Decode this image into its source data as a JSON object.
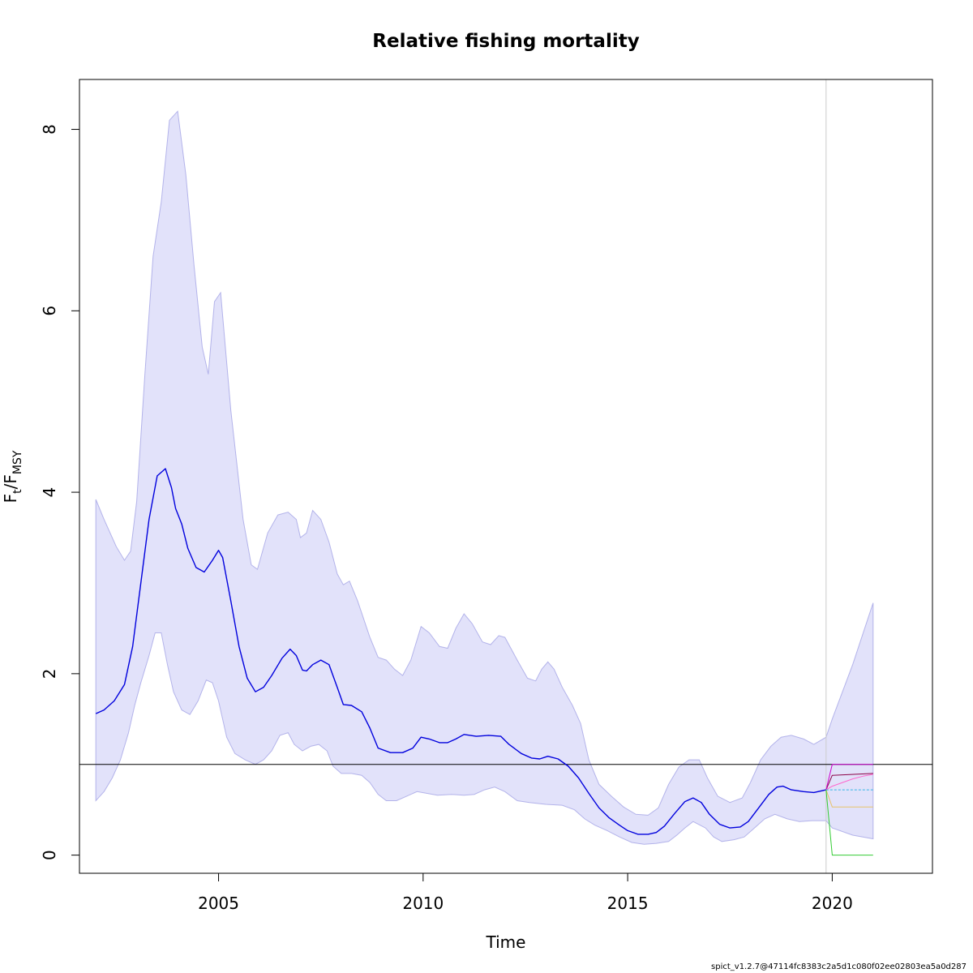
{
  "chart_data": {
    "type": "line",
    "title": "Relative fishing mortality",
    "xlabel": "Time",
    "ylabel": {
      "main": "F",
      "sub1": "t",
      "slash": "/F",
      "sub2": "MSY"
    },
    "xlim": [
      2001.6,
      2022.45
    ],
    "ylim": [
      -0.2,
      8.55
    ],
    "xticks": [
      2005,
      2010,
      2015,
      2020
    ],
    "yticks": [
      0,
      2,
      4,
      6,
      8
    ],
    "reference_line": {
      "y": 1,
      "color": "#000000"
    },
    "vertical_line": {
      "x": 2019.85,
      "color": "#cccccc"
    },
    "band": {
      "name": "95% CI",
      "fill": "#e2e2fa",
      "stroke": "#b3b3ea",
      "upper": [
        [
          2002.0,
          3.92
        ],
        [
          2002.2,
          3.7
        ],
        [
          2002.5,
          3.4
        ],
        [
          2002.7,
          3.25
        ],
        [
          2002.85,
          3.35
        ],
        [
          2003.0,
          3.9
        ],
        [
          2003.2,
          5.3
        ],
        [
          2003.4,
          6.6
        ],
        [
          2003.6,
          7.2
        ],
        [
          2003.8,
          8.1
        ],
        [
          2004.0,
          8.2
        ],
        [
          2004.2,
          7.5
        ],
        [
          2004.4,
          6.5
        ],
        [
          2004.6,
          5.6
        ],
        [
          2004.75,
          5.3
        ],
        [
          2004.9,
          6.1
        ],
        [
          2005.05,
          6.2
        ],
        [
          2005.3,
          4.9
        ],
        [
          2005.6,
          3.7
        ],
        [
          2005.8,
          3.2
        ],
        [
          2005.95,
          3.15
        ],
        [
          2006.2,
          3.55
        ],
        [
          2006.45,
          3.75
        ],
        [
          2006.7,
          3.78
        ],
        [
          2006.9,
          3.7
        ],
        [
          2007.0,
          3.5
        ],
        [
          2007.15,
          3.55
        ],
        [
          2007.3,
          3.8
        ],
        [
          2007.5,
          3.7
        ],
        [
          2007.7,
          3.45
        ],
        [
          2007.9,
          3.1
        ],
        [
          2008.05,
          2.98
        ],
        [
          2008.2,
          3.02
        ],
        [
          2008.4,
          2.8
        ],
        [
          2008.7,
          2.4
        ],
        [
          2008.9,
          2.18
        ],
        [
          2009.1,
          2.15
        ],
        [
          2009.3,
          2.05
        ],
        [
          2009.5,
          1.98
        ],
        [
          2009.7,
          2.15
        ],
        [
          2009.95,
          2.52
        ],
        [
          2010.15,
          2.45
        ],
        [
          2010.4,
          2.3
        ],
        [
          2010.6,
          2.28
        ],
        [
          2010.8,
          2.5
        ],
        [
          2011.0,
          2.66
        ],
        [
          2011.2,
          2.55
        ],
        [
          2011.45,
          2.35
        ],
        [
          2011.65,
          2.32
        ],
        [
          2011.85,
          2.42
        ],
        [
          2012.0,
          2.4
        ],
        [
          2012.3,
          2.15
        ],
        [
          2012.55,
          1.95
        ],
        [
          2012.75,
          1.92
        ],
        [
          2012.9,
          2.05
        ],
        [
          2013.05,
          2.13
        ],
        [
          2013.2,
          2.05
        ],
        [
          2013.4,
          1.85
        ],
        [
          2013.65,
          1.65
        ],
        [
          2013.85,
          1.45
        ],
        [
          2014.05,
          1.05
        ],
        [
          2014.3,
          0.78
        ],
        [
          2014.6,
          0.65
        ],
        [
          2014.9,
          0.53
        ],
        [
          2015.2,
          0.45
        ],
        [
          2015.5,
          0.44
        ],
        [
          2015.75,
          0.52
        ],
        [
          2016.0,
          0.78
        ],
        [
          2016.25,
          0.97
        ],
        [
          2016.5,
          1.05
        ],
        [
          2016.75,
          1.05
        ],
        [
          2016.95,
          0.85
        ],
        [
          2017.2,
          0.65
        ],
        [
          2017.5,
          0.58
        ],
        [
          2017.8,
          0.63
        ],
        [
          2018.0,
          0.8
        ],
        [
          2018.25,
          1.05
        ],
        [
          2018.5,
          1.2
        ],
        [
          2018.75,
          1.3
        ],
        [
          2019.0,
          1.32
        ],
        [
          2019.3,
          1.28
        ],
        [
          2019.55,
          1.22
        ],
        [
          2019.85,
          1.3
        ],
        [
          2020.0,
          1.5
        ],
        [
          2020.5,
          2.1
        ],
        [
          2021.0,
          2.78
        ]
      ],
      "lower": [
        [
          2021.0,
          0.18
        ],
        [
          2020.5,
          0.22
        ],
        [
          2020.0,
          0.3
        ],
        [
          2019.85,
          0.38
        ],
        [
          2019.5,
          0.38
        ],
        [
          2019.2,
          0.37
        ],
        [
          2018.9,
          0.4
        ],
        [
          2018.6,
          0.45
        ],
        [
          2018.35,
          0.4
        ],
        [
          2018.1,
          0.3
        ],
        [
          2017.85,
          0.2
        ],
        [
          2017.6,
          0.17
        ],
        [
          2017.3,
          0.15
        ],
        [
          2017.1,
          0.2
        ],
        [
          2016.9,
          0.3
        ],
        [
          2016.6,
          0.37
        ],
        [
          2016.4,
          0.3
        ],
        [
          2016.2,
          0.22
        ],
        [
          2016.0,
          0.15
        ],
        [
          2015.7,
          0.13
        ],
        [
          2015.4,
          0.12
        ],
        [
          2015.1,
          0.14
        ],
        [
          2014.8,
          0.2
        ],
        [
          2014.5,
          0.27
        ],
        [
          2014.2,
          0.33
        ],
        [
          2013.95,
          0.4
        ],
        [
          2013.7,
          0.5
        ],
        [
          2013.4,
          0.55
        ],
        [
          2013.0,
          0.56
        ],
        [
          2012.6,
          0.58
        ],
        [
          2012.3,
          0.6
        ],
        [
          2012.0,
          0.7
        ],
        [
          2011.75,
          0.75
        ],
        [
          2011.5,
          0.72
        ],
        [
          2011.25,
          0.67
        ],
        [
          2011.0,
          0.66
        ],
        [
          2010.7,
          0.67
        ],
        [
          2010.35,
          0.66
        ],
        [
          2010.1,
          0.68
        ],
        [
          2009.85,
          0.7
        ],
        [
          2009.6,
          0.65
        ],
        [
          2009.35,
          0.6
        ],
        [
          2009.1,
          0.6
        ],
        [
          2008.9,
          0.67
        ],
        [
          2008.7,
          0.8
        ],
        [
          2008.5,
          0.88
        ],
        [
          2008.25,
          0.9
        ],
        [
          2008.0,
          0.9
        ],
        [
          2007.8,
          0.98
        ],
        [
          2007.65,
          1.15
        ],
        [
          2007.45,
          1.22
        ],
        [
          2007.25,
          1.2
        ],
        [
          2007.05,
          1.15
        ],
        [
          2006.85,
          1.22
        ],
        [
          2006.7,
          1.35
        ],
        [
          2006.5,
          1.32
        ],
        [
          2006.3,
          1.15
        ],
        [
          2006.1,
          1.05
        ],
        [
          2005.9,
          1.0
        ],
        [
          2005.65,
          1.05
        ],
        [
          2005.4,
          1.12
        ],
        [
          2005.2,
          1.3
        ],
        [
          2005.0,
          1.7
        ],
        [
          2004.85,
          1.9
        ],
        [
          2004.7,
          1.93
        ],
        [
          2004.5,
          1.7
        ],
        [
          2004.3,
          1.55
        ],
        [
          2004.1,
          1.6
        ],
        [
          2003.9,
          1.8
        ],
        [
          2003.75,
          2.1
        ],
        [
          2003.6,
          2.45
        ],
        [
          2003.45,
          2.45
        ],
        [
          2003.3,
          2.2
        ],
        [
          2003.1,
          1.9
        ],
        [
          2002.95,
          1.65
        ],
        [
          2002.8,
          1.35
        ],
        [
          2002.6,
          1.05
        ],
        [
          2002.4,
          0.85
        ],
        [
          2002.2,
          0.7
        ],
        [
          2002.0,
          0.6
        ]
      ]
    },
    "series": [
      {
        "name": "F/Fmsy estimate",
        "color": "#0000dd",
        "width": 1.4,
        "points": [
          [
            2002.0,
            1.56
          ],
          [
            2002.2,
            1.6
          ],
          [
            2002.45,
            1.7
          ],
          [
            2002.7,
            1.88
          ],
          [
            2002.9,
            2.3
          ],
          [
            2003.1,
            3.0
          ],
          [
            2003.3,
            3.7
          ],
          [
            2003.5,
            4.18
          ],
          [
            2003.7,
            4.26
          ],
          [
            2003.85,
            4.05
          ],
          [
            2003.95,
            3.82
          ],
          [
            2004.1,
            3.65
          ],
          [
            2004.25,
            3.38
          ],
          [
            2004.45,
            3.17
          ],
          [
            2004.65,
            3.12
          ],
          [
            2004.85,
            3.25
          ],
          [
            2005.0,
            3.36
          ],
          [
            2005.1,
            3.28
          ],
          [
            2005.3,
            2.8
          ],
          [
            2005.5,
            2.3
          ],
          [
            2005.7,
            1.95
          ],
          [
            2005.9,
            1.8
          ],
          [
            2006.1,
            1.85
          ],
          [
            2006.3,
            1.98
          ],
          [
            2006.55,
            2.17
          ],
          [
            2006.75,
            2.27
          ],
          [
            2006.9,
            2.2
          ],
          [
            2007.05,
            2.04
          ],
          [
            2007.15,
            2.03
          ],
          [
            2007.3,
            2.1
          ],
          [
            2007.5,
            2.15
          ],
          [
            2007.7,
            2.1
          ],
          [
            2007.9,
            1.85
          ],
          [
            2008.05,
            1.66
          ],
          [
            2008.25,
            1.65
          ],
          [
            2008.5,
            1.58
          ],
          [
            2008.7,
            1.4
          ],
          [
            2008.9,
            1.18
          ],
          [
            2009.2,
            1.13
          ],
          [
            2009.5,
            1.13
          ],
          [
            2009.75,
            1.18
          ],
          [
            2009.95,
            1.3
          ],
          [
            2010.15,
            1.28
          ],
          [
            2010.4,
            1.24
          ],
          [
            2010.6,
            1.24
          ],
          [
            2010.8,
            1.28
          ],
          [
            2011.0,
            1.33
          ],
          [
            2011.3,
            1.31
          ],
          [
            2011.6,
            1.32
          ],
          [
            2011.9,
            1.31
          ],
          [
            2012.1,
            1.22
          ],
          [
            2012.4,
            1.12
          ],
          [
            2012.65,
            1.07
          ],
          [
            2012.85,
            1.06
          ],
          [
            2013.05,
            1.09
          ],
          [
            2013.3,
            1.06
          ],
          [
            2013.55,
            0.98
          ],
          [
            2013.8,
            0.85
          ],
          [
            2014.05,
            0.68
          ],
          [
            2014.3,
            0.52
          ],
          [
            2014.55,
            0.41
          ],
          [
            2014.8,
            0.33
          ],
          [
            2015.0,
            0.27
          ],
          [
            2015.25,
            0.23
          ],
          [
            2015.5,
            0.23
          ],
          [
            2015.7,
            0.25
          ],
          [
            2015.9,
            0.32
          ],
          [
            2016.15,
            0.46
          ],
          [
            2016.4,
            0.59
          ],
          [
            2016.6,
            0.63
          ],
          [
            2016.8,
            0.58
          ],
          [
            2017.0,
            0.45
          ],
          [
            2017.25,
            0.34
          ],
          [
            2017.5,
            0.3
          ],
          [
            2017.75,
            0.31
          ],
          [
            2017.95,
            0.37
          ],
          [
            2018.2,
            0.52
          ],
          [
            2018.45,
            0.67
          ],
          [
            2018.65,
            0.75
          ],
          [
            2018.8,
            0.76
          ],
          [
            2019.0,
            0.72
          ],
          [
            2019.3,
            0.7
          ],
          [
            2019.55,
            0.69
          ],
          [
            2019.85,
            0.72
          ]
        ]
      },
      {
        "name": "Forecast fixed catch",
        "color": "#8b0046",
        "width": 1.0,
        "points": [
          [
            2019.85,
            0.72
          ],
          [
            2020.0,
            0.88
          ],
          [
            2021.0,
            0.9
          ]
        ]
      },
      {
        "name": "Forecast F=Fmsy",
        "color": "#cc00cc",
        "width": 1.0,
        "points": [
          [
            2019.85,
            0.72
          ],
          [
            2020.0,
            1.0
          ],
          [
            2021.0,
            1.0
          ]
        ]
      },
      {
        "name": "Forecast smooth",
        "color": "#ff66cc",
        "width": 1.0,
        "points": [
          [
            2019.85,
            0.72
          ],
          [
            2020.0,
            0.76
          ],
          [
            2020.25,
            0.8
          ],
          [
            2020.5,
            0.84
          ],
          [
            2020.75,
            0.87
          ],
          [
            2021.0,
            0.89
          ]
        ]
      },
      {
        "name": "Forecast F stays same",
        "color": "#33b5e5",
        "width": 1.0,
        "dash": true,
        "points": [
          [
            2019.85,
            0.72
          ],
          [
            2020.0,
            0.72
          ],
          [
            2021.0,
            0.72
          ]
        ]
      },
      {
        "name": "Forecast reduce F",
        "color": "#e8c36a",
        "width": 1.0,
        "points": [
          [
            2019.85,
            0.72
          ],
          [
            2020.0,
            0.53
          ],
          [
            2021.0,
            0.53
          ]
        ]
      },
      {
        "name": "Forecast no fishing",
        "color": "#33cc33",
        "width": 1.0,
        "points": [
          [
            2019.85,
            0.72
          ],
          [
            2020.0,
            0.0
          ],
          [
            2021.0,
            0.0
          ]
        ]
      }
    ]
  },
  "footer": "spict_v1.2.7@47114fc8383c2a5d1c080f02ee02803ea5a0d287"
}
